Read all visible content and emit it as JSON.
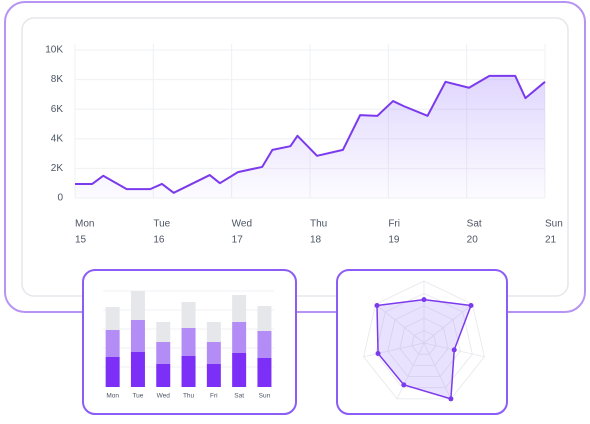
{
  "chart_data": [
    {
      "type": "line",
      "color": "#7c3aed",
      "x": [
        0,
        0.22,
        0.36,
        0.66,
        0.96,
        1.11,
        1.26,
        1.72,
        1.85,
        2.08,
        2.39,
        2.52,
        2.75,
        2.84,
        3.09,
        3.42,
        3.64,
        3.86,
        4.06,
        4.2,
        4.5,
        4.73,
        5.03,
        5.29,
        5.62,
        5.75,
        6
      ],
      "values": [
        950,
        950,
        1500,
        600,
        600,
        950,
        350,
        1550,
        1000,
        1750,
        2100,
        3250,
        3500,
        4200,
        2850,
        3250,
        5600,
        5550,
        6550,
        6200,
        5550,
        7850,
        7450,
        8250,
        8250,
        6750,
        7850
      ],
      "xlim": [
        0,
        6
      ],
      "xticks": [
        {
          "value": 0,
          "label": "Mon"
        },
        {
          "value": 1,
          "label": "Tue"
        },
        {
          "value": 2,
          "label": "Wed"
        },
        {
          "value": 3,
          "label": "Thu"
        },
        {
          "value": 4,
          "label": "Fri"
        },
        {
          "value": 5,
          "label": "Sat"
        },
        {
          "value": 6,
          "label": "Sun"
        }
      ],
      "xtick_dates": [
        "15",
        "16",
        "17",
        "18",
        "19",
        "20",
        "21"
      ],
      "ylim": [
        0,
        10000
      ],
      "yticks": [
        0,
        {
          "value": 2000,
          "label": "2K"
        },
        {
          "value": 4000,
          "label": "4K"
        },
        {
          "value": 6000,
          "label": "6K"
        },
        {
          "value": 8000,
          "label": "8K"
        },
        {
          "value": 10000,
          "label": "10K"
        }
      ],
      "grid": true
    },
    {
      "type": "bar",
      "stacked": true,
      "categories": [
        "Mon",
        "Tue",
        "Wed",
        "Thu",
        "Fri",
        "Sat",
        "Sun"
      ],
      "ylim": [
        0,
        100
      ],
      "series": [
        {
          "color": "#7b2ff7",
          "values": [
            30,
            35,
            23,
            31,
            23,
            34,
            29
          ]
        },
        {
          "color": "#b48cf5",
          "values": [
            27,
            32,
            22,
            28,
            22,
            31,
            27
          ]
        },
        {
          "color": "#e5e7eb",
          "values": [
            23,
            29,
            20,
            26,
            20,
            27,
            25
          ]
        }
      ]
    },
    {
      "type": "radar",
      "color": "#7c3aed",
      "rlim": [
        0,
        100
      ],
      "values": [
        70,
        97,
        50,
        100,
        75,
        76,
        97
      ]
    }
  ]
}
